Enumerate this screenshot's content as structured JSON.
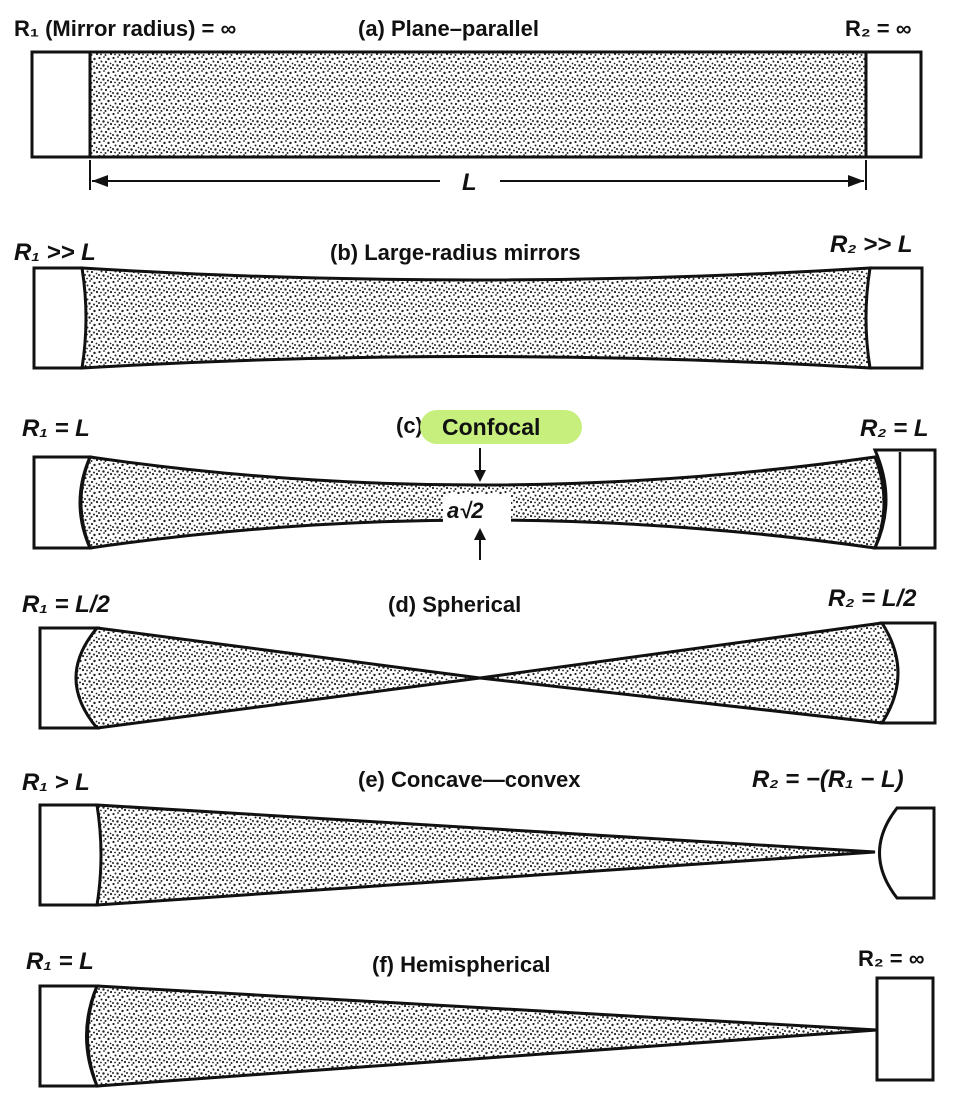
{
  "panels": {
    "a": {
      "title": "(a)  Plane–parallel",
      "left_label": "R₁ (Mirror radius) = ∞",
      "right_label": "R₂ = ∞",
      "length_label": "L"
    },
    "b": {
      "title": "(b)  Large-radius mirrors",
      "left_label": "R₁ >> L",
      "right_label": "R₂ >> L"
    },
    "c": {
      "title_prefix": "(c)",
      "title": "Confocal",
      "left_label": "R₁ = L",
      "right_label": "R₂ = L",
      "waist_label": "a√2",
      "highlight_color": "#c6ef7e"
    },
    "d": {
      "title": "(d)  Spherical",
      "left_label": "R₁ = L/2",
      "right_label": "R₂ = L/2"
    },
    "e": {
      "title": "(e)  Concave—convex",
      "left_label": "R₁ > L",
      "right_label": "R₂ = −(R₁ − L)"
    },
    "f": {
      "title": "(f)  Hemispherical",
      "left_label": "R₁ = L",
      "right_label": "R₂ = ∞"
    }
  }
}
